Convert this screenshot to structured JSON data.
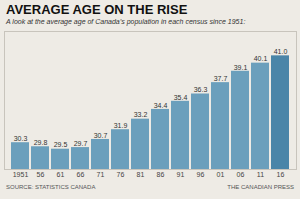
{
  "chart_data": {
    "type": "bar",
    "title": "AVERAGE AGE ON THE RISE",
    "subtitle": "A look at the average age of Canada’s population in each census since 1951:",
    "annotations": [
      "SOURCE: STATISTICS CANADA",
      "THE CANADIAN PRESS"
    ],
    "categories": [
      "1951",
      "56",
      "61",
      "66",
      "71",
      "76",
      "81",
      "86",
      "91",
      "96",
      "01",
      "06",
      "11",
      "16"
    ],
    "values": [
      30.3,
      29.8,
      29.5,
      29.7,
      30.7,
      31.9,
      33.2,
      34.4,
      35.4,
      36.3,
      37.7,
      39.1,
      40.1,
      41.0
    ],
    "value_labels": [
      "30.3",
      "29.8",
      "29.5",
      "29.7",
      "30.7",
      "31.9",
      "33.2",
      "34.4",
      "35.4",
      "36.3",
      "37.7",
      "39.1",
      "40.1",
      "41.0"
    ],
    "colors": [
      "#6b9fbc",
      "#6b9fbc",
      "#6b9fbc",
      "#6b9fbc",
      "#6b9fbc",
      "#6b9fbc",
      "#6b9fbc",
      "#6b9fbc",
      "#6b9fbc",
      "#6b9fbc",
      "#6b9fbc",
      "#6b9fbc",
      "#6b9fbc",
      "#4a85a8"
    ],
    "ylim": [
      27,
      44
    ],
    "data_labels": true,
    "tick_labels": "x",
    "grid": false
  }
}
